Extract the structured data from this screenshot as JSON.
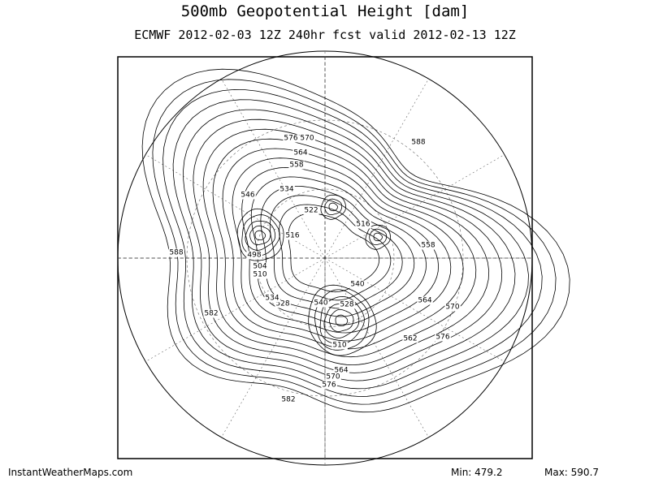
{
  "header": {
    "title": "500mb Geopotential Height [dam]",
    "subtitle": "ECMWF 2012-02-03 12Z 240hr fcst valid 2012-02-13 12Z"
  },
  "map": {
    "contour_labels": [
      "576",
      "570",
      "564",
      "558",
      "534",
      "546",
      "522",
      "516",
      "516",
      "498",
      "504",
      "510",
      "528",
      "534",
      "540",
      "528",
      "510",
      "564",
      "570",
      "576",
      "582",
      "582",
      "588",
      "588",
      "558",
      "564",
      "570",
      "576",
      "562",
      "540"
    ]
  },
  "footer": {
    "source": "InstantWeatherMaps.com",
    "min": "Min: 479.2",
    "max": "Max: 590.7"
  }
}
